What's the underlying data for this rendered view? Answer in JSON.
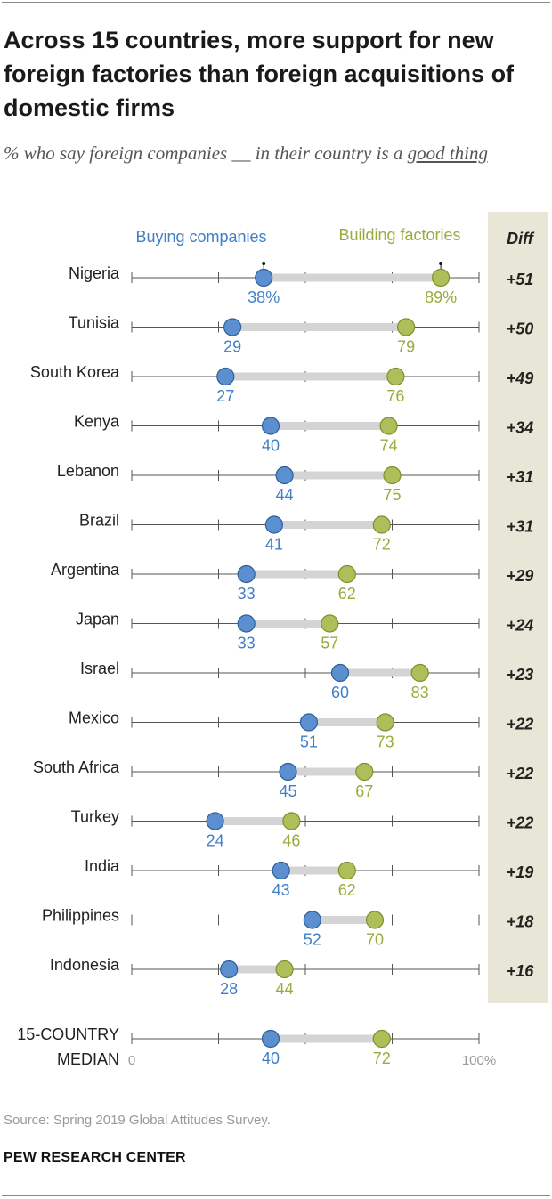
{
  "title": "Across 15 countries, more support for new foreign factories than foreign acquisitions of domestic firms",
  "subtitle_prefix": "% who say foreign companies __ in their country is a ",
  "subtitle_underlined": "good thing",
  "source": "Source: Spring 2019 Global Attitudes Survey.",
  "org": "PEW RESEARCH CENTER",
  "colors": {
    "buying": "#5b8fd0",
    "building": "#aebf5a",
    "buying_text": "#3f7fc8",
    "building_text": "#98ac3c",
    "bar": "#d4d4d4",
    "diff_bg": "#e8e6d7"
  },
  "chart_data": {
    "type": "dot-range",
    "series": [
      {
        "name": "Buying companies",
        "key": "buying"
      },
      {
        "name": "Building factories",
        "key": "building"
      }
    ],
    "diff_header": "Diff",
    "xlim": [
      0,
      100
    ],
    "axis_min_label": "0",
    "axis_max_label": "100%",
    "rows": [
      {
        "label": "Nigeria",
        "buying": 38,
        "building": 89,
        "buying_label": "38%",
        "building_label": "89%",
        "diff": "+51"
      },
      {
        "label": "Tunisia",
        "buying": 29,
        "building": 79,
        "buying_label": "29",
        "building_label": "79",
        "diff": "+50"
      },
      {
        "label": "South Korea",
        "buying": 27,
        "building": 76,
        "buying_label": "27",
        "building_label": "76",
        "diff": "+49"
      },
      {
        "label": "Kenya",
        "buying": 40,
        "building": 74,
        "buying_label": "40",
        "building_label": "74",
        "diff": "+34"
      },
      {
        "label": "Lebanon",
        "buying": 44,
        "building": 75,
        "buying_label": "44",
        "building_label": "75",
        "diff": "+31"
      },
      {
        "label": "Brazil",
        "buying": 41,
        "building": 72,
        "buying_label": "41",
        "building_label": "72",
        "diff": "+31"
      },
      {
        "label": "Argentina",
        "buying": 33,
        "building": 62,
        "buying_label": "33",
        "building_label": "62",
        "diff": "+29"
      },
      {
        "label": "Japan",
        "buying": 33,
        "building": 57,
        "buying_label": "33",
        "building_label": "57",
        "diff": "+24"
      },
      {
        "label": "Israel",
        "buying": 60,
        "building": 83,
        "buying_label": "60",
        "building_label": "83",
        "diff": "+23"
      },
      {
        "label": "Mexico",
        "buying": 51,
        "building": 73,
        "buying_label": "51",
        "building_label": "73",
        "diff": "+22"
      },
      {
        "label": "South Africa",
        "buying": 45,
        "building": 67,
        "buying_label": "45",
        "building_label": "67",
        "diff": "+22"
      },
      {
        "label": "Turkey",
        "buying": 24,
        "building": 46,
        "buying_label": "24",
        "building_label": "46",
        "diff": "+22"
      },
      {
        "label": "India",
        "buying": 43,
        "building": 62,
        "buying_label": "43",
        "building_label": "62",
        "diff": "+19"
      },
      {
        "label": "Philippines",
        "buying": 52,
        "building": 70,
        "buying_label": "52",
        "building_label": "70",
        "diff": "+18"
      },
      {
        "label": "Indonesia",
        "buying": 28,
        "building": 44,
        "buying_label": "28",
        "building_label": "44",
        "diff": "+16"
      }
    ],
    "median": {
      "label_line1": "15-COUNTRY",
      "label_line2": "MEDIAN",
      "buying": 40,
      "building": 72,
      "buying_label": "40",
      "building_label": "72"
    }
  }
}
